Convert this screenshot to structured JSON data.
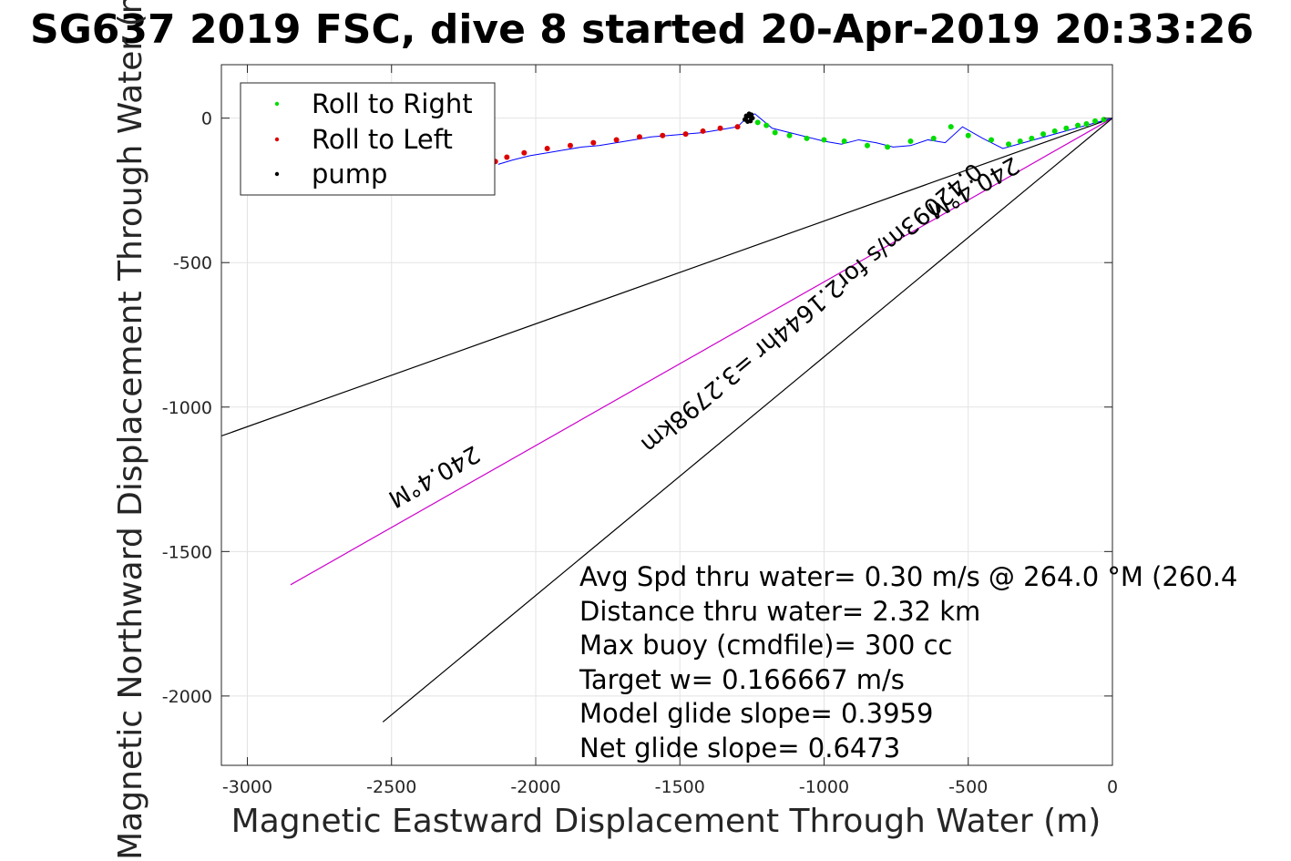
{
  "chart_data": {
    "type": "line",
    "title": "SG637 2019 FSC, dive 8 started 20-Apr-2019 20:33:26",
    "xlabel": "Magnetic Eastward Displacement Through Water (m)",
    "ylabel": "Magnetic Northward Displacement Through Water (m)",
    "xlim": [
      -3090,
      0
    ],
    "ylim": [
      -2240,
      185
    ],
    "x_ticks": [
      -3000,
      -2500,
      -2000,
      -1500,
      -1000,
      -500,
      0
    ],
    "x_tick_labels": [
      "-3000",
      "-2500",
      "-2000",
      "-1500",
      "-1000",
      "-500",
      "0"
    ],
    "y_ticks": [
      -2000,
      -1500,
      -1000,
      -500,
      0
    ],
    "y_tick_labels": [
      "-2000",
      "-1500",
      "-1000",
      "-500",
      "0"
    ],
    "grid": true,
    "legend_position": "top-left",
    "legend": [
      {
        "label": "Roll to Right",
        "color": "#00dd00"
      },
      {
        "label": "Roll to Left",
        "color": "#dd0000"
      },
      {
        "label": "pump",
        "color": "#000000"
      }
    ],
    "track": {
      "color": "#0000ff",
      "x": [
        0,
        -200,
        -380,
        -450,
        -520,
        -580,
        -640,
        -700,
        -760,
        -820,
        -880,
        -940,
        -1000,
        -1060,
        -1120,
        -1180,
        -1240,
        -1270,
        -1300,
        -1360,
        -1420,
        -1480,
        -1540,
        -1600,
        -1660,
        -1720,
        -1780,
        -1840,
        -1900,
        -1960,
        -2020,
        -2080,
        -2130
      ],
      "y": [
        0,
        -55,
        -105,
        -70,
        -30,
        -85,
        -75,
        -95,
        -100,
        -85,
        -75,
        -90,
        -80,
        -65,
        -50,
        -35,
        15,
        0,
        -30,
        -40,
        -50,
        -55,
        -60,
        -65,
        -75,
        -85,
        -95,
        -100,
        -110,
        -120,
        -130,
        -145,
        -160
      ]
    },
    "roll_right": {
      "color": "#00dd00",
      "x": [
        -30,
        -60,
        -90,
        -120,
        -160,
        -200,
        -240,
        -280,
        -320,
        -360,
        -420,
        -500,
        -560,
        -620,
        -700,
        -780,
        -850,
        -930,
        -1000,
        -1060,
        -1120,
        -1170,
        -1200,
        -1230
      ],
      "y": [
        -5,
        -10,
        -20,
        -25,
        -35,
        -45,
        -55,
        -70,
        -80,
        -90,
        -75,
        -60,
        -30,
        -70,
        -80,
        -100,
        -95,
        -80,
        -75,
        -70,
        -60,
        -50,
        -25,
        -15
      ]
    },
    "roll_left": {
      "color": "#dd0000",
      "x": [
        -1300,
        -1360,
        -1420,
        -1480,
        -1560,
        -1640,
        -1720,
        -1800,
        -1880,
        -1960,
        -2040,
        -2100,
        -2140
      ],
      "y": [
        -30,
        -35,
        -45,
        -55,
        -60,
        -65,
        -75,
        -85,
        -95,
        -105,
        -120,
        -135,
        -150
      ]
    },
    "pump": {
      "color": "#000000",
      "x": [
        -1275,
        -1268,
        -1260,
        -1252,
        -1248,
        -1255,
        -1265,
        -1272,
        -1270,
        -1262,
        -1254
      ],
      "y": [
        -5,
        5,
        15,
        12,
        0,
        -10,
        -12,
        -2,
        8,
        10,
        2
      ]
    },
    "reference_lines": [
      {
        "name": "upper-bound",
        "color": "#000000",
        "x": [
          0,
          -3090
        ],
        "y": [
          0,
          -1100
        ]
      },
      {
        "name": "heading",
        "color": "#cc00cc",
        "x": [
          0,
          -2850
        ],
        "y": [
          0,
          -1615
        ]
      },
      {
        "name": "lower-bound",
        "color": "#000000",
        "x": [
          0,
          -2530
        ],
        "y": [
          0,
          -2090
        ]
      }
    ],
    "line_labels": [
      {
        "text": "240.4°M"
      },
      {
        "text": "240.4°M"
      },
      {
        "text": "0.42093m/s for2.1644hr =3.2798km"
      }
    ],
    "annotations": [
      "Avg Spd thru water=  0.30 m/s @ 264.0 °M (260.4",
      "Distance thru water=  2.32 km",
      "Max buoy (cmdfile)= 300 cc",
      "Target w= 0.166667 m/s",
      "Model glide slope= 0.3959",
      "Net glide slope= 0.6473"
    ]
  }
}
